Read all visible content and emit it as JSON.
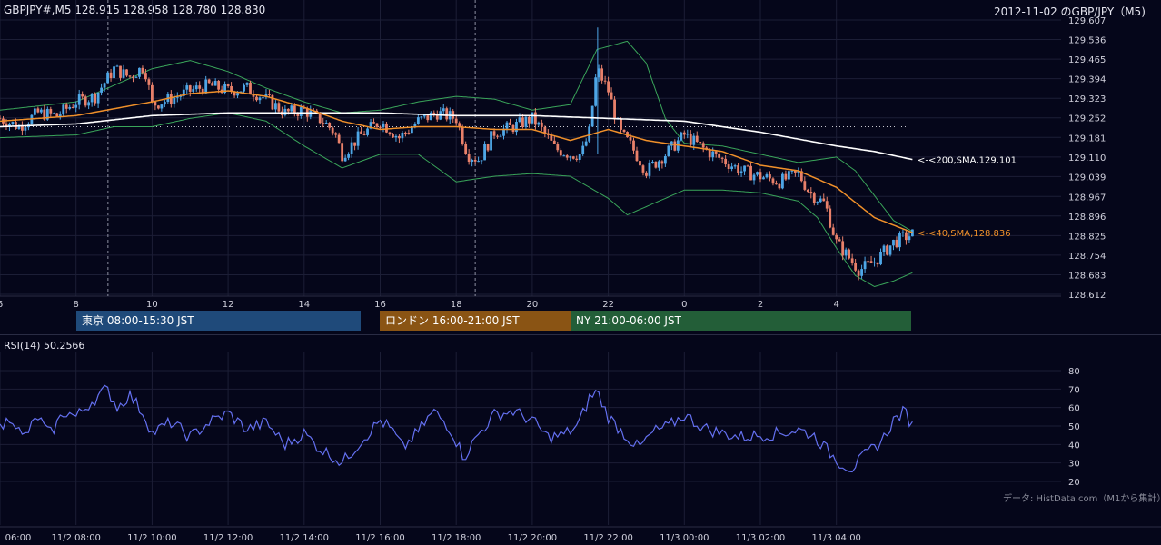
{
  "header": {
    "symbol_info": "GBPJPY#,M5 128.915 128.958 128.780 128.830",
    "title_right": "2012-11-02 のGBP/JPY（M5)"
  },
  "sessions": {
    "tokyo": "東京 08:00-15:30 JST",
    "london": "ロンドン 16:00-21:00 JST",
    "ny": "NY 21:00-06:00 JST"
  },
  "colors": {
    "background": "#05061a",
    "up": "#4ea6e6",
    "down": "#e8806a",
    "sma40": "#f0902a",
    "sma200": "#ffffff",
    "bollinger": "#3aa55a",
    "rsi": "#6470f0",
    "tokyo": "#1f4a7a",
    "london": "#8a5414",
    "ny": "#235e38"
  },
  "rsi": {
    "label": "RSI(14) 50.2566"
  },
  "credit": "データ: HistData.com（M1から集計）",
  "chart_data": [
    {
      "type": "candlestick",
      "title": "GBPJPY#,M5",
      "ylim": [
        128.612,
        129.607
      ],
      "y_ticks": [
        "129.607",
        "129.536",
        "129.465",
        "129.394",
        "129.323",
        "129.252",
        "129.181",
        "129.110",
        "129.039",
        "128.967",
        "128.896",
        "128.825",
        "128.754",
        "128.683",
        "128.612"
      ],
      "x_ticks": [
        "6",
        "8",
        "10",
        "12",
        "14",
        "16",
        "18",
        "20",
        "22",
        "0",
        "2",
        "4"
      ],
      "annotations": [
        "<-<200,SMA,129.101",
        "<-<40,SMA,128.836"
      ],
      "last_ohlc": {
        "open": 128.915,
        "high": 128.958,
        "low": 128.78,
        "close": 128.83
      },
      "sma200_last": 129.101,
      "sma40_last": 128.836,
      "price_path": [
        [
          6.0,
          129.25
        ],
        [
          6.5,
          129.22
        ],
        [
          7.0,
          129.27
        ],
        [
          7.5,
          129.26
        ],
        [
          8.0,
          129.31
        ],
        [
          8.5,
          129.33
        ],
        [
          9.0,
          129.43
        ],
        [
          9.4,
          129.4
        ],
        [
          9.8,
          129.44
        ],
        [
          10.0,
          129.3
        ],
        [
          10.5,
          129.32
        ],
        [
          11.0,
          129.35
        ],
        [
          11.5,
          129.37
        ],
        [
          12.0,
          129.35
        ],
        [
          12.5,
          129.36
        ],
        [
          13.0,
          129.32
        ],
        [
          13.5,
          129.27
        ],
        [
          14.0,
          129.28
        ],
        [
          14.5,
          129.24
        ],
        [
          14.8,
          129.2
        ],
        [
          15.0,
          129.12
        ],
        [
          15.5,
          129.19
        ],
        [
          16.0,
          129.24
        ],
        [
          16.5,
          129.18
        ],
        [
          17.0,
          129.24
        ],
        [
          17.5,
          129.27
        ],
        [
          18.0,
          129.25
        ],
        [
          18.3,
          129.12
        ],
        [
          18.6,
          129.1
        ],
        [
          19.0,
          129.2
        ],
        [
          19.5,
          129.22
        ],
        [
          20.0,
          129.25
        ],
        [
          20.3,
          129.2
        ],
        [
          20.6,
          129.14
        ],
        [
          21.0,
          129.12
        ],
        [
          21.3,
          129.12
        ],
        [
          21.5,
          129.2
        ],
        [
          21.7,
          129.43
        ],
        [
          22.0,
          129.35
        ],
        [
          22.3,
          129.2
        ],
        [
          22.6,
          129.15
        ],
        [
          23.0,
          129.06
        ],
        [
          23.5,
          129.12
        ],
        [
          24.0,
          129.19
        ],
        [
          24.5,
          129.14
        ],
        [
          25.0,
          129.1
        ],
        [
          25.5,
          129.06
        ],
        [
          26.0,
          129.04
        ],
        [
          26.5,
          129.02
        ],
        [
          27.0,
          129.05
        ],
        [
          27.3,
          128.98
        ],
        [
          27.7,
          128.94
        ],
        [
          28.0,
          128.8
        ],
        [
          28.3,
          128.75
        ],
        [
          28.6,
          128.7
        ],
        [
          29.0,
          128.73
        ],
        [
          29.5,
          128.8
        ],
        [
          29.8,
          128.82
        ],
        [
          30.0,
          128.83
        ]
      ],
      "sma40": [
        [
          6.0,
          129.24
        ],
        [
          8.0,
          129.26
        ],
        [
          10.0,
          129.31
        ],
        [
          11.0,
          129.34
        ],
        [
          12.0,
          129.35
        ],
        [
          13.0,
          129.33
        ],
        [
          14.0,
          129.29
        ],
        [
          15.0,
          129.24
        ],
        [
          16.0,
          129.21
        ],
        [
          17.0,
          129.22
        ],
        [
          18.0,
          129.22
        ],
        [
          19.0,
          129.21
        ],
        [
          20.0,
          129.21
        ],
        [
          21.0,
          129.17
        ],
        [
          22.0,
          129.21
        ],
        [
          23.0,
          129.17
        ],
        [
          24.0,
          129.15
        ],
        [
          25.0,
          129.13
        ],
        [
          26.0,
          129.08
        ],
        [
          27.0,
          129.06
        ],
        [
          28.0,
          129.0
        ],
        [
          29.0,
          128.89
        ],
        [
          30.0,
          128.836
        ]
      ],
      "sma200": [
        [
          6.0,
          129.22
        ],
        [
          8.0,
          129.23
        ],
        [
          10.0,
          129.26
        ],
        [
          12.0,
          129.27
        ],
        [
          14.0,
          129.27
        ],
        [
          16.0,
          129.27
        ],
        [
          18.0,
          129.26
        ],
        [
          20.0,
          129.26
        ],
        [
          22.0,
          129.25
        ],
        [
          24.0,
          129.24
        ],
        [
          26.0,
          129.2
        ],
        [
          28.0,
          129.15
        ],
        [
          29.0,
          129.13
        ],
        [
          30.0,
          129.101
        ]
      ],
      "bollinger_upper": [
        [
          6.0,
          129.28
        ],
        [
          8.0,
          129.31
        ],
        [
          9.0,
          129.37
        ],
        [
          10.0,
          129.43
        ],
        [
          11.0,
          129.46
        ],
        [
          12.0,
          129.42
        ],
        [
          13.0,
          129.36
        ],
        [
          14.0,
          129.31
        ],
        [
          15.0,
          129.27
        ],
        [
          16.0,
          129.28
        ],
        [
          17.0,
          129.31
        ],
        [
          18.0,
          129.33
        ],
        [
          19.0,
          129.32
        ],
        [
          20.0,
          129.28
        ],
        [
          21.0,
          129.3
        ],
        [
          21.7,
          129.5
        ],
        [
          22.5,
          129.53
        ],
        [
          23.0,
          129.45
        ],
        [
          23.5,
          129.25
        ],
        [
          24.0,
          129.16
        ],
        [
          25.0,
          129.15
        ],
        [
          26.0,
          129.12
        ],
        [
          27.0,
          129.09
        ],
        [
          28.0,
          129.11
        ],
        [
          28.5,
          129.06
        ],
        [
          29.0,
          128.97
        ],
        [
          29.5,
          128.88
        ],
        [
          30.0,
          128.84
        ]
      ],
      "bollinger_lower": [
        [
          6.0,
          129.18
        ],
        [
          8.0,
          129.19
        ],
        [
          9.0,
          129.22
        ],
        [
          10.0,
          129.22
        ],
        [
          11.0,
          129.25
        ],
        [
          12.0,
          129.27
        ],
        [
          13.0,
          129.24
        ],
        [
          14.0,
          129.15
        ],
        [
          15.0,
          129.07
        ],
        [
          16.0,
          129.12
        ],
        [
          17.0,
          129.12
        ],
        [
          18.0,
          129.02
        ],
        [
          19.0,
          129.04
        ],
        [
          20.0,
          129.05
        ],
        [
          21.0,
          129.04
        ],
        [
          22.0,
          128.96
        ],
        [
          22.5,
          128.9
        ],
        [
          23.0,
          128.93
        ],
        [
          24.0,
          128.99
        ],
        [
          25.0,
          128.99
        ],
        [
          26.0,
          128.98
        ],
        [
          27.0,
          128.95
        ],
        [
          27.5,
          128.89
        ],
        [
          28.0,
          128.78
        ],
        [
          28.5,
          128.68
        ],
        [
          29.0,
          128.64
        ],
        [
          29.5,
          128.66
        ],
        [
          30.0,
          128.69
        ]
      ]
    },
    {
      "type": "line",
      "title": "RSI(14) 50.2566",
      "ylim": [
        20,
        80
      ],
      "y_ticks": [
        "80",
        "70",
        "60",
        "50",
        "40",
        "30",
        "20"
      ],
      "x_ticks": [
        "06:00",
        "11/2 08:00",
        "11/2 10:00",
        "11/2 12:00",
        "11/2 14:00",
        "11/2 16:00",
        "11/2 18:00",
        "11/2 20:00",
        "11/2 22:00",
        "11/3 00:00",
        "11/3 02:00",
        "11/3 04:00"
      ],
      "series": [
        {
          "name": "RSI(14)",
          "points": [
            [
              6.0,
              48
            ],
            [
              6.3,
              56
            ],
            [
              6.6,
              43
            ],
            [
              7.0,
              55
            ],
            [
              7.3,
              45
            ],
            [
              7.7,
              58
            ],
            [
              8.0,
              55
            ],
            [
              8.4,
              63
            ],
            [
              8.8,
              70
            ],
            [
              9.1,
              60
            ],
            [
              9.4,
              67
            ],
            [
              9.8,
              56
            ],
            [
              10.0,
              46
            ],
            [
              10.5,
              52
            ],
            [
              11.0,
              44
            ],
            [
              11.5,
              52
            ],
            [
              12.0,
              57
            ],
            [
              12.5,
              48
            ],
            [
              13.0,
              52
            ],
            [
              13.5,
              40
            ],
            [
              14.0,
              46
            ],
            [
              14.4,
              38
            ],
            [
              14.8,
              33
            ],
            [
              15.0,
              30
            ],
            [
              15.5,
              42
            ],
            [
              16.0,
              53
            ],
            [
              16.3,
              48
            ],
            [
              16.6,
              38
            ],
            [
              17.0,
              47
            ],
            [
              17.4,
              58
            ],
            [
              17.8,
              50
            ],
            [
              18.0,
              42
            ],
            [
              18.2,
              33
            ],
            [
              18.6,
              46
            ],
            [
              19.0,
              56
            ],
            [
              19.5,
              58
            ],
            [
              20.0,
              53
            ],
            [
              20.4,
              44
            ],
            [
              20.8,
              45
            ],
            [
              21.2,
              50
            ],
            [
              21.5,
              65
            ],
            [
              21.7,
              69
            ],
            [
              22.0,
              55
            ],
            [
              22.4,
              46
            ],
            [
              22.8,
              38
            ],
            [
              23.2,
              47
            ],
            [
              23.6,
              50
            ],
            [
              24.0,
              56
            ],
            [
              24.5,
              49
            ],
            [
              25.0,
              46
            ],
            [
              25.5,
              44
            ],
            [
              26.0,
              45
            ],
            [
              26.5,
              46
            ],
            [
              27.0,
              48
            ],
            [
              27.4,
              45
            ],
            [
              27.8,
              36
            ],
            [
              28.1,
              30
            ],
            [
              28.4,
              27
            ],
            [
              28.8,
              35
            ],
            [
              29.2,
              42
            ],
            [
              29.5,
              53
            ],
            [
              29.8,
              58
            ],
            [
              30.0,
              50
            ]
          ]
        }
      ]
    }
  ]
}
